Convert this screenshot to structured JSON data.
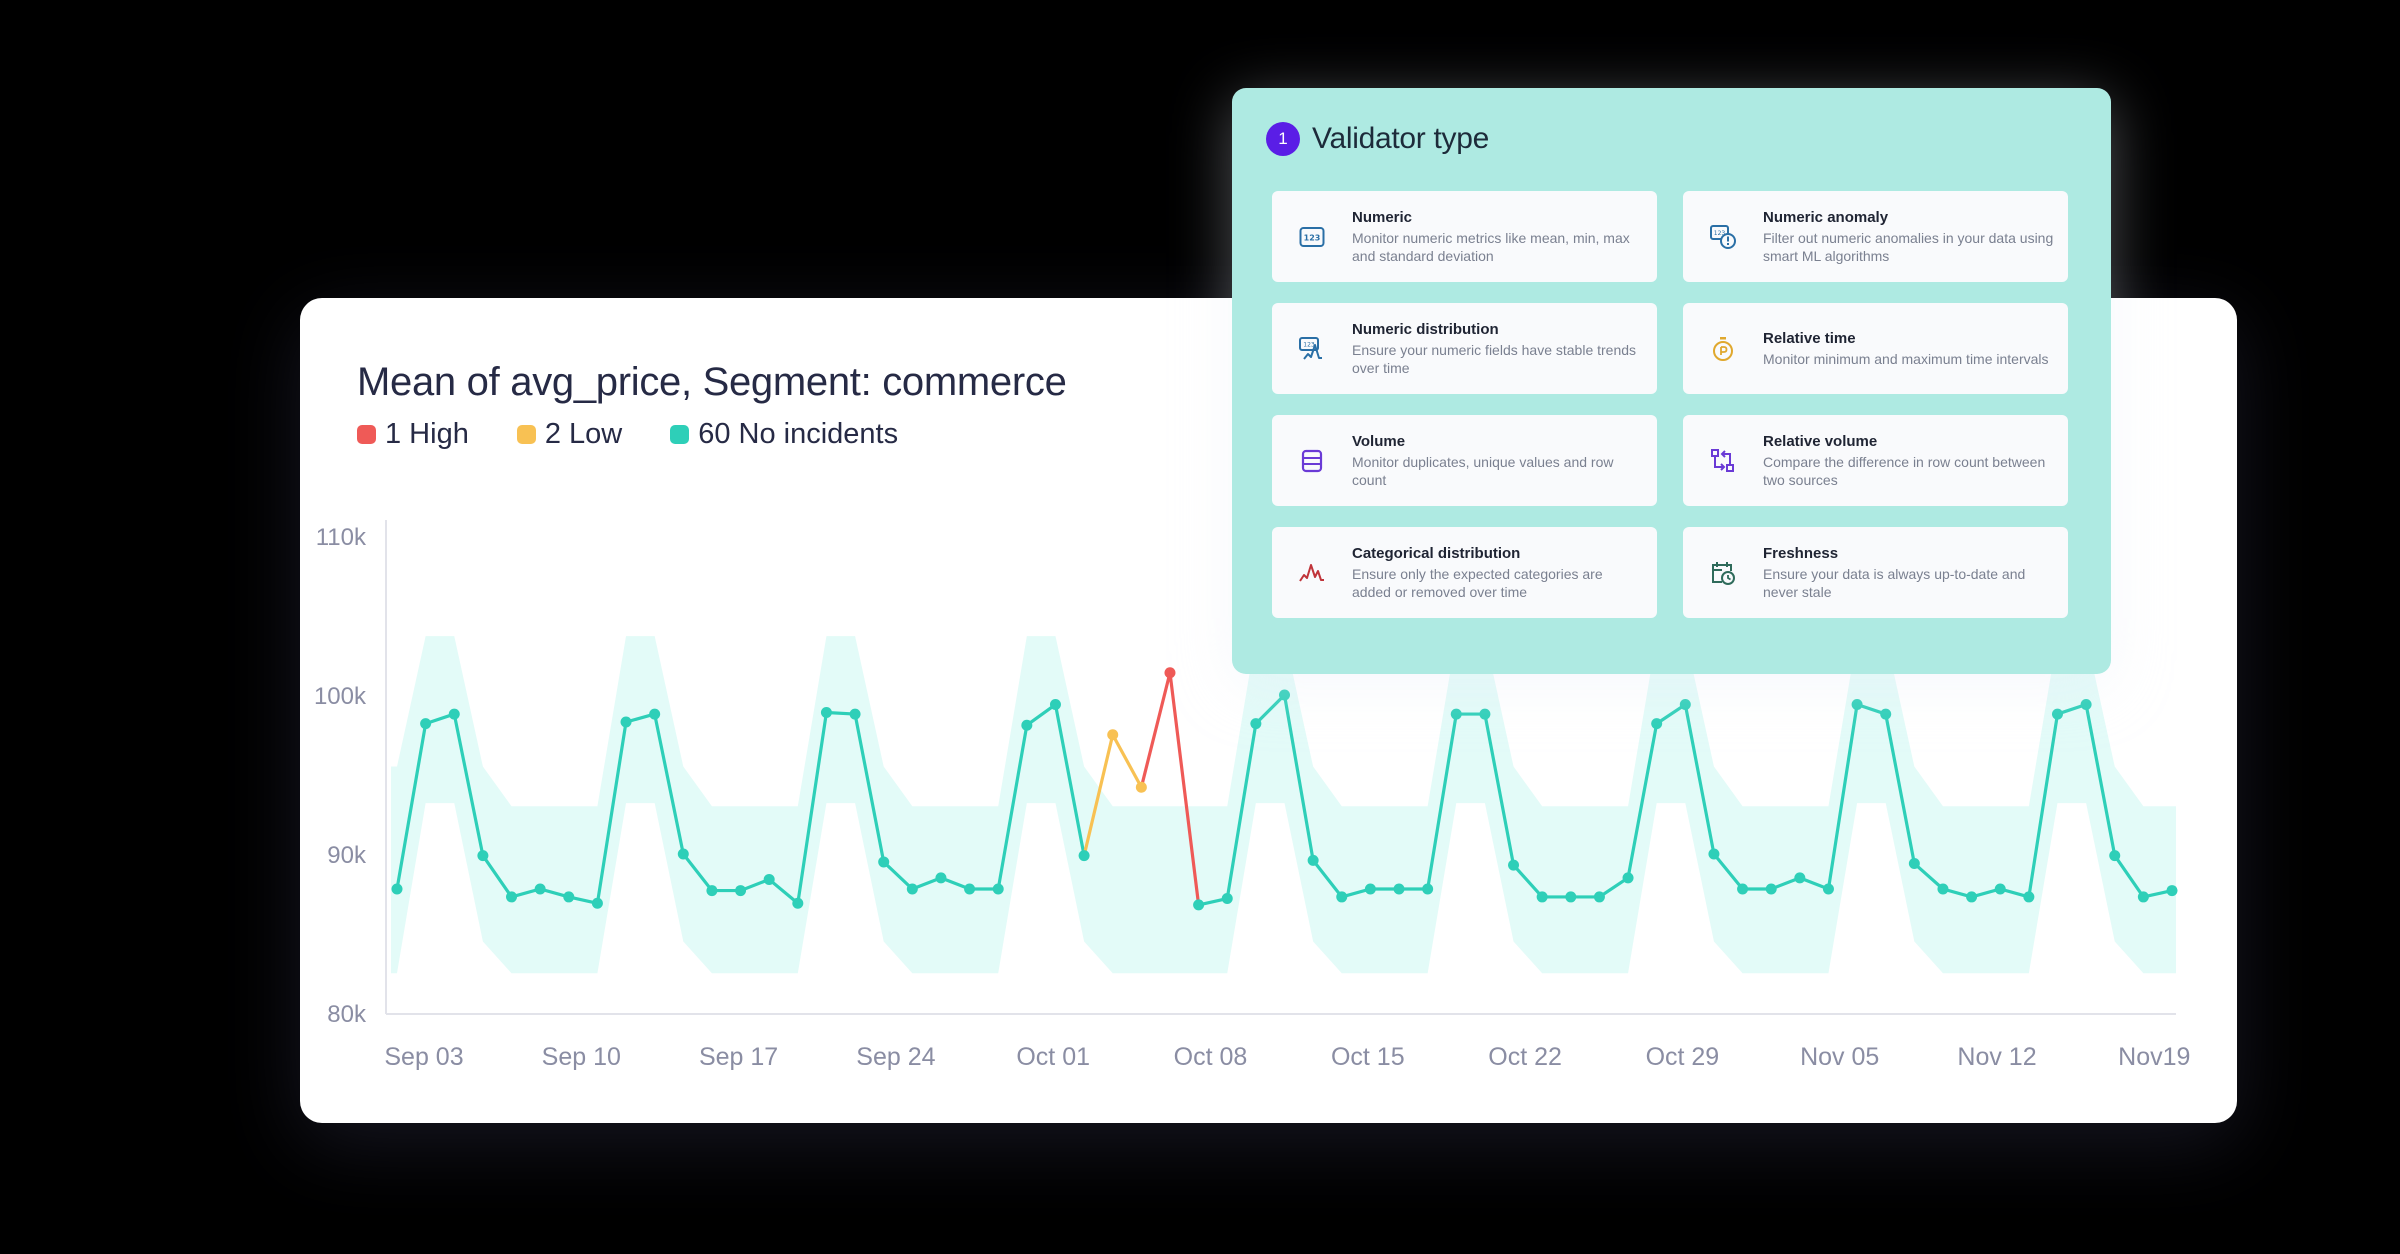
{
  "chart_card": {
    "title": "Mean of avg_price, Segment: commerce",
    "legend": [
      {
        "label": "1 High",
        "color": "#ef5a57"
      },
      {
        "label": "2 Low",
        "color": "#f8c153"
      },
      {
        "label": "60 No incidents",
        "color": "#2ecfb8"
      }
    ]
  },
  "validator_panel": {
    "step_number": "1",
    "title": "Validator type",
    "cards": [
      {
        "title": "Numeric",
        "description": "Monitor numeric metrics like mean, min, max and standard deviation",
        "icon": "numeric-123-icon",
        "icon_color": "#2a6fa6"
      },
      {
        "title": "Numeric anomaly",
        "description": "Filter out numeric anomalies in your data using smart ML algorithms",
        "icon": "numeric-anomaly-icon",
        "icon_color": "#2a6fa6"
      },
      {
        "title": "Numeric distribution",
        "description": "Ensure your numeric fields have stable trends over time",
        "icon": "numeric-distribution-icon",
        "icon_color": "#2a6fa6"
      },
      {
        "title": "Relative time",
        "description": "Monitor minimum and maximum time intervals",
        "icon": "stopwatch-icon",
        "icon_color": "#e0a82e"
      },
      {
        "title": "Volume",
        "description": "Monitor duplicates, unique values and row count",
        "icon": "rows-icon",
        "icon_color": "#6a3ad6"
      },
      {
        "title": "Relative volume",
        "description": "Compare the difference in row count between two sources",
        "icon": "compare-arrows-icon",
        "icon_color": "#6a3ad6"
      },
      {
        "title": "Categorical distribution",
        "description": "Ensure only the expected categories are added or removed over time",
        "icon": "distribution-curve-icon",
        "icon_color": "#c0343a"
      },
      {
        "title": "Freshness",
        "description": "Ensure your data is always up-to-date and never stale",
        "icon": "calendar-clock-icon",
        "icon_color": "#2f6b5b"
      }
    ]
  },
  "chart_data": {
    "type": "line",
    "title": "Mean of avg_price, Segment: commerce",
    "xlabel": "",
    "ylabel": "",
    "ylim": [
      80000,
      110000
    ],
    "y_ticks": [
      "80k",
      "90k",
      "100k",
      "110k"
    ],
    "x_tick_labels": [
      "Sep 03",
      "Sep 10",
      "Sep 17",
      "Sep 24",
      "Oct 01",
      "Oct 08",
      "Oct 15",
      "Oct 22",
      "Oct 29",
      "Nov 05",
      "Nov 12",
      "Nov19"
    ],
    "grid": false,
    "legend_position": "top-left",
    "series": [
      {
        "name": "avg_price mean",
        "values_k": [
          87.8,
          98.2,
          98.8,
          89.9,
          87.3,
          87.8,
          87.3,
          86.9,
          98.3,
          98.8,
          90.0,
          87.7,
          87.7,
          88.4,
          86.9,
          98.9,
          98.8,
          89.5,
          87.8,
          88.5,
          87.8,
          87.8,
          98.1,
          99.4,
          89.9,
          97.5,
          94.2,
          101.4,
          86.8,
          87.2,
          98.2,
          100.0,
          89.6,
          87.3,
          87.8,
          87.8,
          87.8,
          98.8,
          98.8,
          89.3,
          87.3,
          87.3,
          87.3,
          88.5,
          98.2,
          99.4,
          90.0,
          87.8,
          87.8,
          88.5,
          87.8,
          99.4,
          98.8,
          89.4,
          87.8,
          87.3,
          87.8,
          87.3,
          98.8,
          99.4,
          89.9,
          87.3,
          87.7
        ],
        "status": [
          "ok",
          "ok",
          "ok",
          "ok",
          "ok",
          "ok",
          "ok",
          "ok",
          "ok",
          "ok",
          "ok",
          "ok",
          "ok",
          "ok",
          "ok",
          "ok",
          "ok",
          "ok",
          "ok",
          "ok",
          "ok",
          "ok",
          "ok",
          "ok",
          "ok",
          "low",
          "low",
          "high",
          "ok",
          "ok",
          "ok",
          "ok",
          "ok",
          "ok",
          "ok",
          "ok",
          "ok",
          "ok",
          "ok",
          "ok",
          "ok",
          "ok",
          "ok",
          "ok",
          "ok",
          "ok",
          "ok",
          "ok",
          "ok",
          "ok",
          "ok",
          "ok",
          "ok",
          "ok",
          "ok",
          "ok",
          "ok",
          "ok",
          "ok",
          "ok",
          "ok",
          "ok",
          "ok"
        ]
      }
    ],
    "band_pattern_k": {
      "peak": [
        93.2,
        103.7
      ],
      "transition": [
        84.5,
        95.5
      ],
      "trough": [
        82.5,
        93.0
      ]
    },
    "band_kinds": [
      "edge",
      "peak",
      "peak",
      "transition",
      "trough",
      "trough",
      "trough",
      "trough",
      "peak",
      "peak",
      "transition",
      "trough",
      "trough",
      "trough",
      "trough",
      "peak",
      "peak",
      "transition",
      "trough",
      "trough",
      "trough",
      "trough",
      "peak",
      "peak",
      "transition",
      "trough",
      "trough",
      "trough",
      "trough",
      "trough",
      "peak",
      "peak",
      "transition",
      "trough",
      "trough",
      "trough",
      "trough",
      "peak",
      "peak",
      "transition",
      "trough",
      "trough",
      "trough",
      "trough",
      "peak",
      "peak",
      "transition",
      "trough",
      "trough",
      "trough",
      "trough",
      "peak",
      "peak",
      "transition",
      "trough",
      "trough",
      "trough",
      "trough",
      "peak",
      "peak",
      "transition",
      "trough",
      "trough"
    ],
    "colors": {
      "ok": "#2ecfb8",
      "low": "#f8c153",
      "high": "#ef5a57",
      "band": "#e3fbf8",
      "axis": "#e2e3ea"
    }
  }
}
